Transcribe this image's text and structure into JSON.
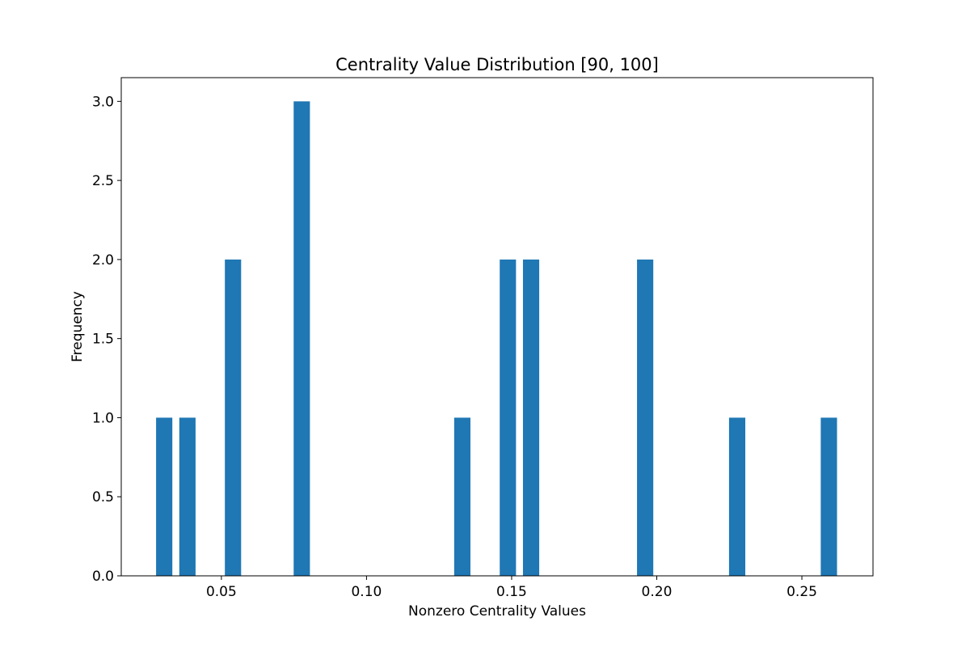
{
  "chart_data": {
    "type": "bar",
    "title": "Centrality Value Distribution [90, 100]",
    "xlabel": "Nonzero Centrality Values",
    "ylabel": "Frequency",
    "xlim": [
      0.0155,
      0.2745
    ],
    "ylim": [
      0,
      3.15
    ],
    "bar_width": 0.0056,
    "x_ticks": [
      0.05,
      0.1,
      0.15,
      0.2,
      0.25
    ],
    "x_tick_labels": [
      "0.05",
      "0.10",
      "0.15",
      "0.20",
      "0.25"
    ],
    "y_ticks": [
      0.0,
      0.5,
      1.0,
      1.5,
      2.0,
      2.5,
      3.0
    ],
    "y_tick_labels": [
      "0.0",
      "0.5",
      "1.0",
      "1.5",
      "2.0",
      "2.5",
      "3.0"
    ],
    "x": [
      0.0303,
      0.0383,
      0.054,
      0.0777,
      0.133,
      0.1487,
      0.1567,
      0.196,
      0.2277,
      0.2593
    ],
    "values": [
      1,
      1,
      2,
      3,
      1,
      2,
      2,
      2,
      1,
      1
    ],
    "bar_color": "#1f77b4",
    "grid": false,
    "legend": "none"
  }
}
